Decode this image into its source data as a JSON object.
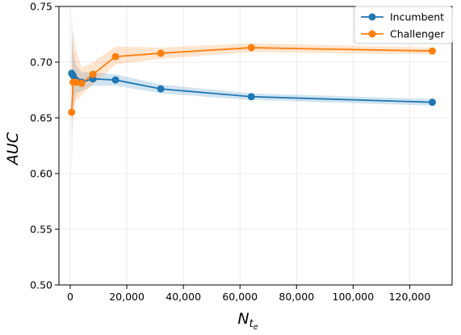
{
  "chart_data": {
    "type": "line",
    "title": "",
    "xlabel": "N",
    "xlabel_sub": "t",
    "xlabel_subsub": "e",
    "ylabel": "AUC",
    "xlim": [
      -4000,
      135000
    ],
    "ylim": [
      0.5,
      0.75
    ],
    "xticks": [
      0,
      20000,
      40000,
      60000,
      80000,
      100000,
      120000
    ],
    "xtick_labels": [
      "0",
      "20,000",
      "40,000",
      "60,000",
      "80,000",
      "100,000",
      "120,000"
    ],
    "yticks": [
      0.5,
      0.55,
      0.6,
      0.65,
      0.7,
      0.75
    ],
    "ytick_labels": [
      "0.50",
      "0.55",
      "0.60",
      "0.65",
      "0.70",
      "0.75"
    ],
    "grid": true,
    "legend_position": "top-right",
    "x": [
      500,
      1000,
      2000,
      4000,
      8000,
      16000,
      32000,
      64000,
      128000
    ],
    "series": [
      {
        "name": "Incumbent",
        "color": "#1f77b4",
        "values": [
          0.69,
          0.688,
          0.684,
          0.682,
          0.685,
          0.684,
          0.676,
          0.669,
          0.664
        ],
        "lower": [
          0.64,
          0.66,
          0.672,
          0.674,
          0.679,
          0.679,
          0.672,
          0.666,
          0.661
        ],
        "upper": [
          0.745,
          0.712,
          0.697,
          0.691,
          0.691,
          0.689,
          0.68,
          0.672,
          0.667
        ]
      },
      {
        "name": "Challenger",
        "color": "#ff7f0e",
        "values": [
          0.655,
          0.682,
          0.682,
          0.681,
          0.689,
          0.705,
          0.708,
          0.713,
          0.71
        ],
        "lower": [
          0.6,
          0.65,
          0.665,
          0.67,
          0.68,
          0.698,
          0.703,
          0.709,
          0.707
        ],
        "upper": [
          0.71,
          0.728,
          0.712,
          0.695,
          0.7,
          0.714,
          0.713,
          0.717,
          0.713
        ]
      }
    ]
  }
}
